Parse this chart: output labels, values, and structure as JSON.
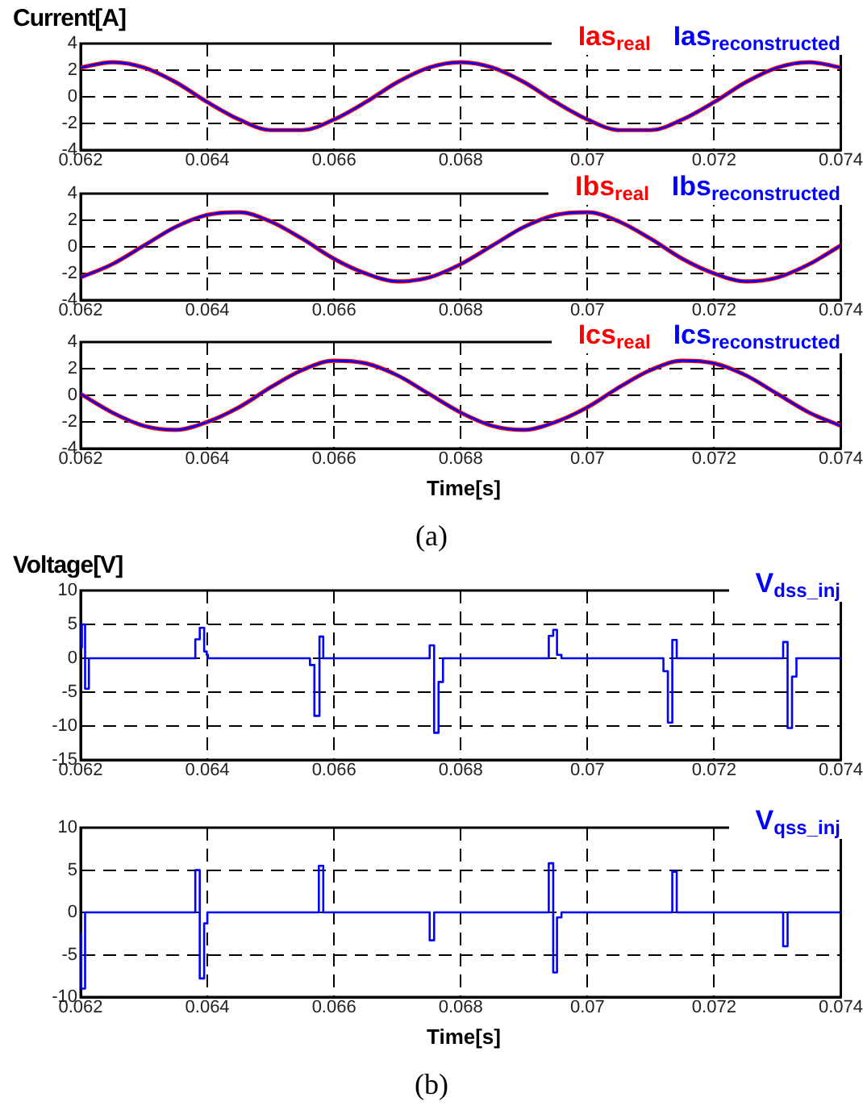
{
  "chart_data": [
    {
      "type": "line",
      "ylabel": "Current[A]",
      "x": [
        0.062,
        0.0625,
        0.063,
        0.0635,
        0.064,
        0.0645,
        0.065,
        0.0655,
        0.066,
        0.0665,
        0.067,
        0.0675,
        0.068,
        0.0685,
        0.069,
        0.0695,
        0.07,
        0.0705,
        0.071,
        0.0715,
        0.072,
        0.0725,
        0.073,
        0.0735,
        0.074
      ],
      "series": [
        {
          "name": "Ias$_{real}$",
          "color": "#ff0000",
          "values": [
            2.2,
            2.6,
            2.2,
            1.1,
            -0.4,
            -1.7,
            -2.5,
            -2.5,
            -1.7,
            -0.4,
            1.1,
            2.2,
            2.6,
            2.2,
            1.1,
            -0.4,
            -1.7,
            -2.5,
            -2.5,
            -1.7,
            -0.4,
            1.1,
            2.2,
            2.6,
            2.2
          ]
        },
        {
          "name": "Ias$_{reconstructed}$",
          "color": "#0000ff",
          "values": [
            2.2,
            2.6,
            2.2,
            1.1,
            -0.4,
            -1.7,
            -2.5,
            -2.5,
            -1.7,
            -0.4,
            1.1,
            2.2,
            2.6,
            2.2,
            1.1,
            -0.4,
            -1.7,
            -2.5,
            -2.5,
            -1.7,
            -0.4,
            1.1,
            2.2,
            2.6,
            2.2
          ]
        }
      ],
      "xlim": [
        0.062,
        0.074
      ],
      "xticks": [
        0.062,
        0.064,
        0.066,
        0.068,
        0.07,
        0.072,
        0.074
      ],
      "ylim": [
        -4,
        4
      ],
      "yticks": [
        -4,
        -2,
        0,
        2,
        4
      ],
      "grid": true,
      "legend": "top right",
      "marker": "none"
    },
    {
      "type": "line",
      "x": [
        0.062,
        0.0625,
        0.063,
        0.0635,
        0.064,
        0.0645,
        0.065,
        0.0655,
        0.066,
        0.0665,
        0.067,
        0.0675,
        0.068,
        0.0685,
        0.069,
        0.0695,
        0.07,
        0.0705,
        0.071,
        0.0715,
        0.072,
        0.0725,
        0.073,
        0.0735,
        0.074
      ],
      "series": [
        {
          "name": "Ibs$_{real}$",
          "color": "#ff0000",
          "values": [
            -2.3,
            -1.3,
            0.1,
            1.5,
            2.4,
            2.6,
            1.9,
            0.6,
            -0.9,
            -2.0,
            -2.6,
            -2.3,
            -1.3,
            0.1,
            1.5,
            2.4,
            2.6,
            1.9,
            0.6,
            -0.9,
            -2.0,
            -2.6,
            -2.3,
            -1.3,
            0.1
          ]
        },
        {
          "name": "Ibs$_{reconstructed}$",
          "color": "#0000ff",
          "values": [
            -2.3,
            -1.3,
            0.1,
            1.5,
            2.4,
            2.6,
            1.9,
            0.6,
            -0.9,
            -2.0,
            -2.6,
            -2.3,
            -1.3,
            0.1,
            1.5,
            2.4,
            2.6,
            1.9,
            0.6,
            -0.9,
            -2.0,
            -2.6,
            -2.3,
            -1.3,
            0.1
          ]
        }
      ],
      "xlim": [
        0.062,
        0.074
      ],
      "xticks": [
        0.062,
        0.064,
        0.066,
        0.068,
        0.07,
        0.072,
        0.074
      ],
      "ylim": [
        -4,
        4
      ],
      "yticks": [
        -4,
        -2,
        0,
        2,
        4
      ],
      "grid": true,
      "legend": "top right",
      "marker": "none"
    },
    {
      "type": "line",
      "xlabel": "Time[s]",
      "annotations": [
        "(a)"
      ],
      "x": [
        0.062,
        0.0625,
        0.063,
        0.0635,
        0.064,
        0.0645,
        0.065,
        0.0655,
        0.066,
        0.0665,
        0.067,
        0.0675,
        0.068,
        0.0685,
        0.069,
        0.0695,
        0.07,
        0.0705,
        0.071,
        0.0715,
        0.072,
        0.0725,
        0.073,
        0.0735,
        0.074
      ],
      "series": [
        {
          "name": "Ics$_{real}$",
          "color": "#ff0000",
          "values": [
            0.1,
            -1.3,
            -2.3,
            -2.6,
            -2.0,
            -0.9,
            0.6,
            1.9,
            2.6,
            2.4,
            1.5,
            0.1,
            -1.3,
            -2.3,
            -2.6,
            -2.0,
            -0.9,
            0.6,
            1.9,
            2.6,
            2.4,
            1.5,
            0.1,
            -1.3,
            -2.3
          ]
        },
        {
          "name": "Ics$_{reconstructed}$",
          "color": "#0000ff",
          "values": [
            0.1,
            -1.3,
            -2.3,
            -2.6,
            -2.0,
            -0.9,
            0.6,
            1.9,
            2.6,
            2.4,
            1.5,
            0.1,
            -1.3,
            -2.3,
            -2.6,
            -2.0,
            -0.9,
            0.6,
            1.9,
            2.6,
            2.4,
            1.5,
            0.1,
            -1.3,
            -2.3
          ]
        }
      ],
      "xlim": [
        0.062,
        0.074
      ],
      "xticks": [
        0.062,
        0.064,
        0.066,
        0.068,
        0.07,
        0.072,
        0.074
      ],
      "ylim": [
        -4,
        4
      ],
      "yticks": [
        -4,
        -2,
        0,
        2,
        4
      ],
      "grid": true,
      "legend": "top right",
      "marker": "none"
    },
    {
      "type": "step",
      "ylabel": "Voltage[V]",
      "x": [
        0.062,
        0.06202,
        0.06207,
        0.06213,
        0.06381,
        0.06388,
        0.06395,
        0.06399,
        0.06401,
        0.06562,
        0.06569,
        0.06577,
        0.06583,
        0.06751,
        0.06758,
        0.06765,
        0.06772,
        0.06939,
        0.06946,
        0.06952,
        0.06959,
        0.0712,
        0.07127,
        0.07134,
        0.07141,
        0.07309,
        0.07316,
        0.07323,
        0.0733,
        0.074
      ],
      "series": [
        {
          "name": "V$_{dss_inj}$",
          "color": "#0000ff",
          "values": [
            1.6,
            5,
            -4.5,
            0,
            2.8,
            4.5,
            1,
            0.5,
            0,
            -1,
            -8.5,
            3.2,
            0,
            1.9,
            -11,
            -3.5,
            0,
            3.3,
            4.2,
            0.5,
            0,
            -1.9,
            -9.5,
            2.7,
            0,
            2.4,
            -10.3,
            -2.7,
            0,
            0
          ]
        }
      ],
      "xlim": [
        0.062,
        0.074
      ],
      "xticks": [
        0.062,
        0.064,
        0.066,
        0.068,
        0.07,
        0.072,
        0.074
      ],
      "ylim": [
        -15,
        10
      ],
      "yticks": [
        -15,
        -10,
        -5,
        0,
        5,
        10
      ],
      "grid": true,
      "legend": "top right",
      "marker": "none"
    },
    {
      "type": "step",
      "xlabel": "Time[s]",
      "annotations": [
        "(b)"
      ],
      "x": [
        0.062,
        0.06201,
        0.06207,
        0.06381,
        0.06388,
        0.06395,
        0.064,
        0.06576,
        0.06583,
        0.06751,
        0.06758,
        0.06939,
        0.06946,
        0.06952,
        0.06959,
        0.07134,
        0.07141,
        0.07309,
        0.07316,
        0.074
      ],
      "series": [
        {
          "name": "V$_{qss_inj}$",
          "color": "#0000ff",
          "values": [
            -2.5,
            -9,
            0,
            5,
            -7.8,
            -1.3,
            0,
            5.5,
            0,
            -3.3,
            0,
            5.8,
            -7.1,
            -0.6,
            0,
            4.8,
            0,
            -4,
            0,
            0
          ]
        }
      ],
      "xlim": [
        0.062,
        0.074
      ],
      "xticks": [
        0.062,
        0.064,
        0.066,
        0.068,
        0.07,
        0.072,
        0.074
      ],
      "ylim": [
        -10,
        10
      ],
      "yticks": [
        -10,
        -5,
        0,
        5,
        10
      ],
      "grid": true,
      "legend": "top right",
      "marker": "none"
    }
  ]
}
